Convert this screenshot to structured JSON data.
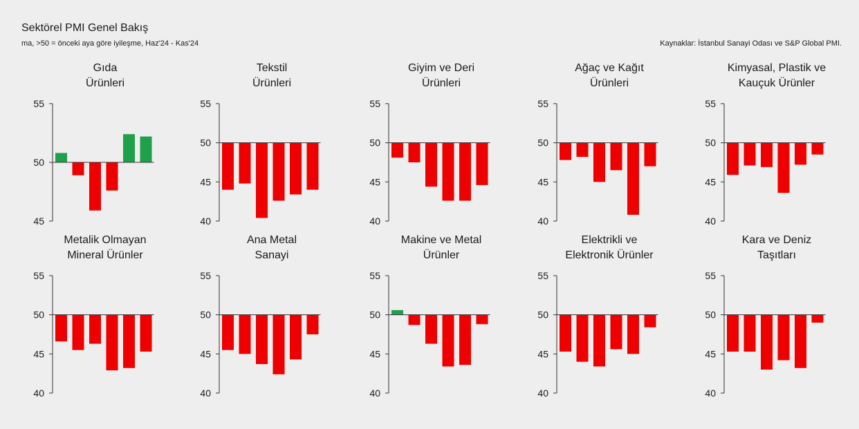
{
  "header": {
    "title": "Sektörel PMI Genel Bakış",
    "subtitle": "ma, >50 = önceki aya göre iyileşme, Haz'24 - Kas'24",
    "source": "Kaynaklar: İstanbul Sanayi Odası ve S&P Global PMI."
  },
  "colors": {
    "positive": "#1fa04a",
    "negative": "#ee0000",
    "axis": "#333333"
  },
  "chart_data": [
    {
      "type": "bar",
      "title": [
        "Gıda",
        "Ürünleri"
      ],
      "baseline": 50,
      "ylim": [
        45,
        55
      ],
      "yticks": [
        45,
        50,
        55
      ],
      "values": [
        50.8,
        48.9,
        45.9,
        47.6,
        52.4,
        52.2
      ]
    },
    {
      "type": "bar",
      "title": [
        "Tekstil",
        "Ürünleri"
      ],
      "baseline": 50,
      "ylim": [
        40,
        55
      ],
      "yticks": [
        40,
        45,
        50,
        55
      ],
      "values": [
        44.0,
        44.8,
        40.4,
        42.6,
        43.4,
        44.0
      ]
    },
    {
      "type": "bar",
      "title": [
        "Giyim ve Deri",
        "Ürünleri"
      ],
      "baseline": 50,
      "ylim": [
        40,
        55
      ],
      "yticks": [
        40,
        45,
        50,
        55
      ],
      "values": [
        48.1,
        47.5,
        44.4,
        42.6,
        42.6,
        44.6
      ]
    },
    {
      "type": "bar",
      "title": [
        "Ağaç ve Kağıt",
        "Ürünleri"
      ],
      "baseline": 50,
      "ylim": [
        40,
        55
      ],
      "yticks": [
        40,
        45,
        50,
        55
      ],
      "values": [
        47.8,
        48.2,
        45.0,
        46.5,
        40.8,
        47.0
      ]
    },
    {
      "type": "bar",
      "title": [
        "Kimyasal, Plastik ve",
        "Kauçuk Ürünler"
      ],
      "baseline": 50,
      "ylim": [
        40,
        55
      ],
      "yticks": [
        40,
        45,
        50,
        55
      ],
      "values": [
        45.9,
        47.1,
        46.9,
        43.6,
        47.2,
        48.5
      ]
    },
    {
      "type": "bar",
      "title": [
        "Metalik Olmayan",
        "Mineral Ürünler"
      ],
      "baseline": 50,
      "ylim": [
        40,
        55
      ],
      "yticks": [
        40,
        45,
        50,
        55
      ],
      "values": [
        46.6,
        45.5,
        46.3,
        42.9,
        43.2,
        45.3
      ]
    },
    {
      "type": "bar",
      "title": [
        "Ana Metal",
        "Sanayi"
      ],
      "baseline": 50,
      "ylim": [
        40,
        55
      ],
      "yticks": [
        40,
        45,
        50,
        55
      ],
      "values": [
        45.5,
        45.0,
        43.7,
        42.4,
        44.3,
        47.5
      ]
    },
    {
      "type": "bar",
      "title": [
        "Makine ve Metal",
        "Ürünler"
      ],
      "baseline": 50,
      "ylim": [
        40,
        55
      ],
      "yticks": [
        40,
        45,
        50,
        55
      ],
      "values": [
        50.6,
        48.7,
        46.3,
        43.4,
        43.6,
        48.8
      ]
    },
    {
      "type": "bar",
      "title": [
        "Elektrikli ve",
        "Elektronik Ürünler"
      ],
      "baseline": 50,
      "ylim": [
        40,
        55
      ],
      "yticks": [
        40,
        45,
        50,
        55
      ],
      "values": [
        45.3,
        44.0,
        43.4,
        45.6,
        45.0,
        48.4
      ]
    },
    {
      "type": "bar",
      "title": [
        "Kara ve Deniz",
        "Taşıtları"
      ],
      "baseline": 50,
      "ylim": [
        40,
        55
      ],
      "yticks": [
        40,
        45,
        50,
        55
      ],
      "values": [
        45.3,
        45.3,
        43.0,
        44.2,
        43.2,
        49.0
      ]
    }
  ]
}
